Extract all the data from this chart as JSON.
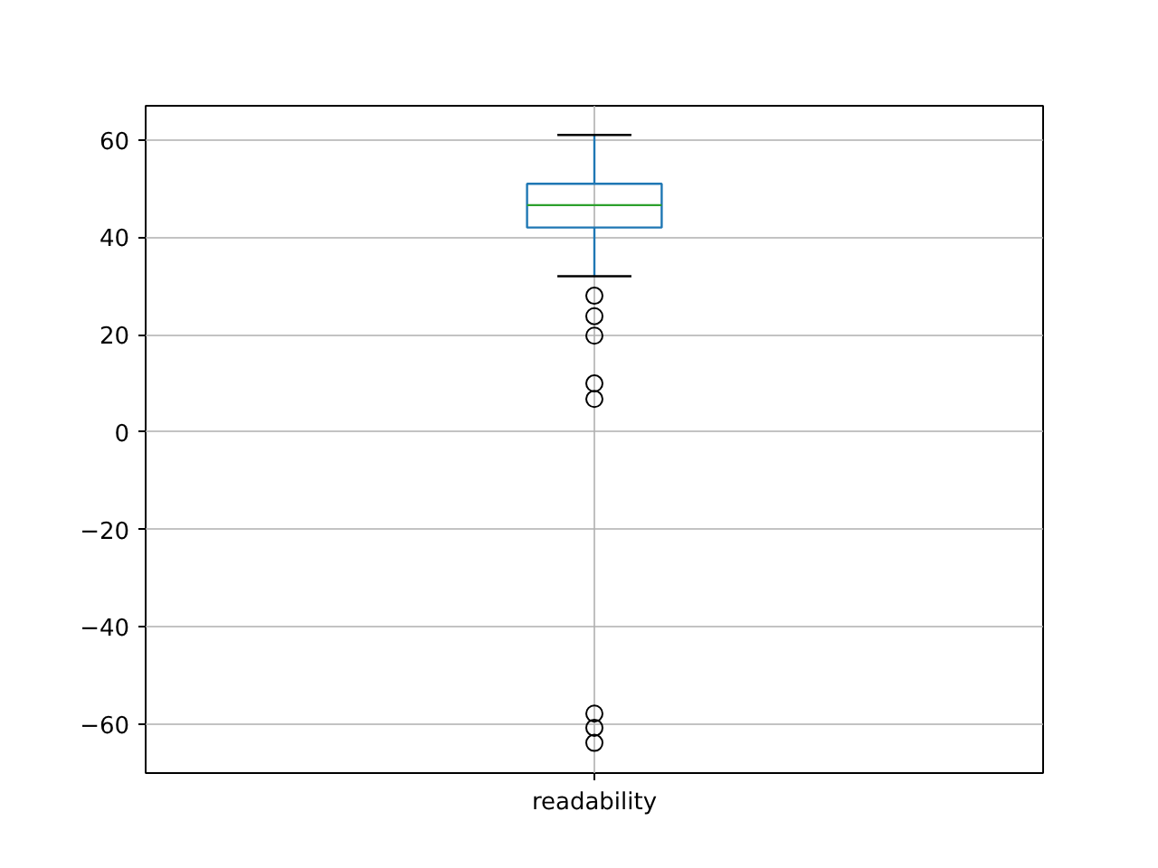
{
  "chart_data": {
    "type": "box",
    "categories": [
      "readability"
    ],
    "series": [
      {
        "color": "#1f77b4",
        "boxes": [
          {
            "low": 32,
            "q1": 42,
            "median": 46.6,
            "q3": 51,
            "high": 61,
            "outliers": [
              28,
              23.8,
              19.8,
              10,
              6.8,
              -57.8,
              -60.7,
              -63.8
            ]
          }
        ]
      }
    ],
    "ylim": [
      -70,
      67
    ],
    "yticks": [
      -60,
      -40,
      -20,
      0,
      20,
      40,
      60
    ],
    "grid": true,
    "marker": "circle"
  }
}
